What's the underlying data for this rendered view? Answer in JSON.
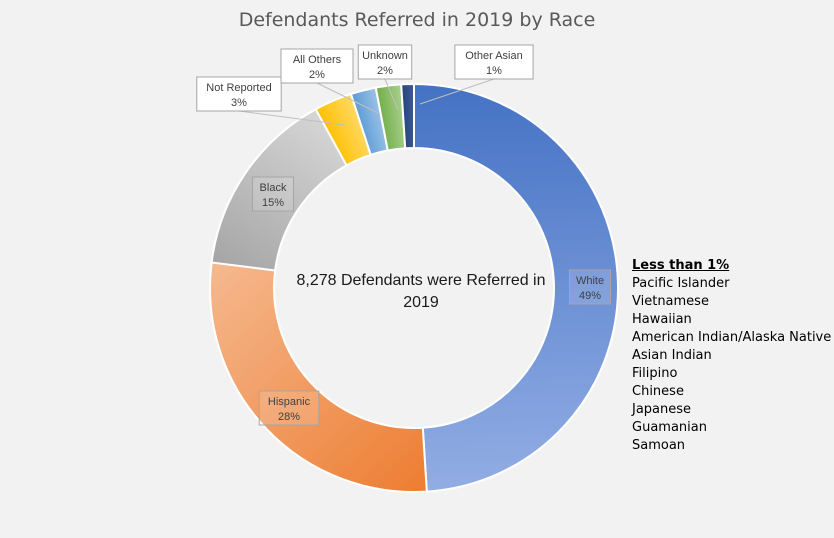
{
  "chart_data": {
    "type": "pie",
    "subtype": "donut",
    "title": "Defendants Referred in 2019 by Race",
    "center_text": "8,278 Defendants were Referred in 2019",
    "slices": [
      {
        "label": "White",
        "percent_label": "49%",
        "value": 49,
        "color": "#4472c4",
        "color_light": "#92ade4"
      },
      {
        "label": "Hispanic",
        "percent_label": "28%",
        "value": 28,
        "color": "#ed7d31",
        "color_light": "#f5b98f"
      },
      {
        "label": "Black",
        "percent_label": "15%",
        "value": 15,
        "color": "#a5a5a5",
        "color_light": "#d6d6d6"
      },
      {
        "label": "Not Reported",
        "percent_label": "3%",
        "value": 3,
        "color": "#ffc000",
        "color_light": "#ffd966"
      },
      {
        "label": "All Others",
        "percent_label": "2%",
        "value": 2,
        "color": "#5b9bd5",
        "color_light": "#9dc3e6"
      },
      {
        "label": "Unknown",
        "percent_label": "2%",
        "value": 2,
        "color": "#70ad47",
        "color_light": "#a9d18e"
      },
      {
        "label": "Other Asian",
        "percent_label": "1%",
        "value": 1,
        "color": "#264478",
        "color_light": "#3b5c99"
      }
    ]
  },
  "less_than_1": {
    "heading": "Less than 1%",
    "items": [
      "Pacific Islander",
      "Vietnamese",
      "Hawaiian",
      "American Indian/Alaska Native",
      "Asian Indian",
      "Filipino",
      "Chinese",
      "Japanese",
      "Guamanian",
      "Samoan"
    ]
  }
}
